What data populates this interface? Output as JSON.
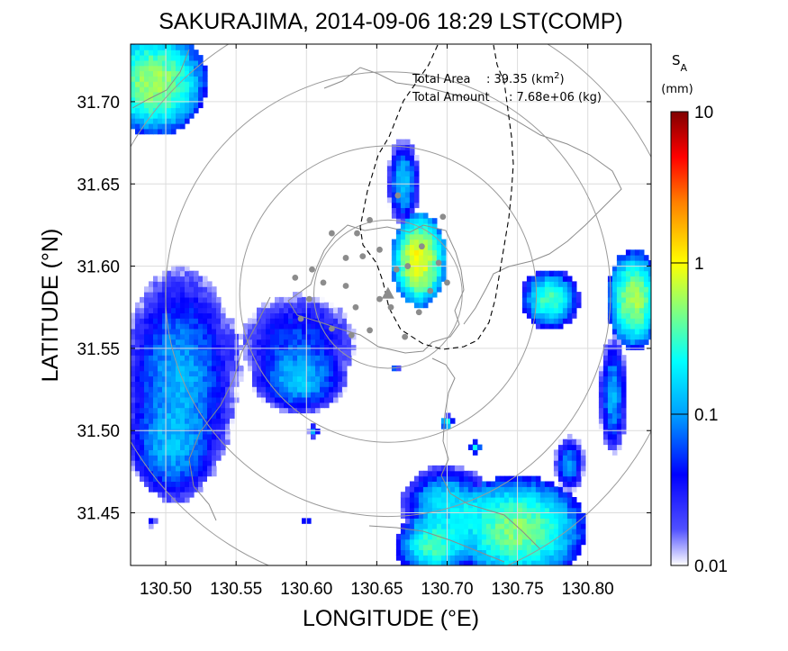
{
  "chart_data": {
    "type": "heatmap",
    "title": "SAKURAJIMA, 2014-09-06 18:29 LST(COMP)",
    "xlabel": "LONGITUDE (°E)",
    "ylabel": "LATITUDE (°N)",
    "xlim": [
      130.475,
      130.845
    ],
    "ylim": [
      31.418,
      31.735
    ],
    "x_ticks": [
      130.5,
      130.55,
      130.6,
      130.65,
      130.7,
      130.75,
      130.8
    ],
    "x_tick_labels": [
      "130.50",
      "130.55",
      "130.60",
      "130.65",
      "130.70",
      "130.75",
      "130.80"
    ],
    "y_ticks": [
      31.45,
      31.5,
      31.55,
      31.6,
      31.65,
      31.7
    ],
    "y_tick_labels": [
      "31.45",
      "31.50",
      "31.55",
      "31.60",
      "31.65",
      "31.70"
    ],
    "grid": true,
    "annotation": {
      "area_label": "Total Area",
      "area_value": ": 39.35 (km",
      "area_sup": "2",
      "area_tail": ")",
      "amount_label": "Total Amount",
      "amount_value": ": 7.68e+06 (kg)"
    },
    "colorbar": {
      "title_main": "S",
      "title_sub": "A",
      "unit": "(mm)",
      "scale": "log",
      "range": [
        0.01,
        10
      ],
      "tick_values": [
        0.01,
        0.1,
        1,
        10
      ],
      "tick_labels": [
        "0.01",
        "0.1",
        "1",
        "10"
      ],
      "colors": [
        "#ffffff",
        "#0000ff",
        "#00ffff",
        "#ffff00",
        "#ff0000",
        "#800000"
      ]
    },
    "vent": {
      "lon": 130.658,
      "lat": 31.583
    },
    "range_rings_km": [
      5,
      10,
      15,
      20
    ],
    "stations": [
      [
        130.618,
        31.62
      ],
      [
        130.628,
        31.605
      ],
      [
        130.628,
        31.588
      ],
      [
        130.636,
        31.62
      ],
      [
        130.645,
        31.628
      ],
      [
        130.652,
        31.61
      ],
      [
        130.664,
        31.598
      ],
      [
        130.672,
        31.6
      ],
      [
        130.66,
        31.575
      ],
      [
        130.68,
        31.572
      ],
      [
        130.688,
        31.585
      ],
      [
        130.694,
        31.602
      ],
      [
        130.7,
        31.59
      ],
      [
        130.645,
        31.561
      ],
      [
        130.632,
        31.558
      ],
      [
        130.618,
        31.562
      ],
      [
        130.602,
        31.58
      ],
      [
        130.604,
        31.598
      ],
      [
        130.596,
        31.568
      ],
      [
        130.64,
        31.606
      ],
      [
        130.67,
        31.557
      ],
      [
        130.682,
        31.612
      ],
      [
        130.697,
        31.63
      ],
      [
        130.652,
        31.58
      ],
      [
        130.612,
        31.59
      ],
      [
        130.592,
        31.593
      ],
      [
        130.635,
        31.575
      ],
      [
        130.665,
        31.643
      ]
    ],
    "cells": [
      {
        "lon": 130.492,
        "lat": 31.712,
        "rx": 0.034,
        "ry": 0.03,
        "peak": 0.6
      },
      {
        "lon": 130.594,
        "lat": 31.553,
        "rx": 0.048,
        "ry": 0.035,
        "peak": 0.06
      },
      {
        "lon": 130.595,
        "lat": 31.53,
        "rx": 0.03,
        "ry": 0.02,
        "peak": 0.12
      },
      {
        "lon": 130.51,
        "lat": 31.53,
        "rx": 0.04,
        "ry": 0.068,
        "peak": 0.12
      },
      {
        "lon": 130.502,
        "lat": 31.488,
        "rx": 0.03,
        "ry": 0.03,
        "peak": 0.08
      },
      {
        "lon": 130.68,
        "lat": 31.604,
        "rx": 0.018,
        "ry": 0.026,
        "peak": 1.0
      },
      {
        "lon": 130.669,
        "lat": 31.651,
        "rx": 0.011,
        "ry": 0.025,
        "peak": 0.15
      },
      {
        "lon": 130.773,
        "lat": 31.58,
        "rx": 0.019,
        "ry": 0.017,
        "peak": 0.35
      },
      {
        "lon": 130.833,
        "lat": 31.58,
        "rx": 0.018,
        "ry": 0.028,
        "peak": 0.6
      },
      {
        "lon": 130.818,
        "lat": 31.522,
        "rx": 0.01,
        "ry": 0.035,
        "peak": 0.12
      },
      {
        "lon": 130.787,
        "lat": 31.48,
        "rx": 0.011,
        "ry": 0.017,
        "peak": 0.1
      },
      {
        "lon": 130.75,
        "lat": 31.44,
        "rx": 0.045,
        "ry": 0.03,
        "peak": 0.5
      },
      {
        "lon": 130.7,
        "lat": 31.455,
        "rx": 0.03,
        "ry": 0.022,
        "peak": 0.2
      },
      {
        "lon": 130.69,
        "lat": 31.43,
        "rx": 0.025,
        "ry": 0.018,
        "peak": 0.35
      },
      {
        "lon": 130.7,
        "lat": 31.505,
        "rx": 0.004,
        "ry": 0.004,
        "peak": 0.3
      },
      {
        "lon": 130.72,
        "lat": 31.49,
        "rx": 0.004,
        "ry": 0.004,
        "peak": 0.2
      },
      {
        "lon": 130.605,
        "lat": 31.5,
        "rx": 0.004,
        "ry": 0.004,
        "peak": 0.1
      },
      {
        "lon": 130.6,
        "lat": 31.445,
        "rx": 0.004,
        "ry": 0.004,
        "peak": 0.05
      },
      {
        "lon": 130.663,
        "lat": 31.538,
        "rx": 0.003,
        "ry": 0.003,
        "peak": 0.1
      },
      {
        "lon": 130.49,
        "lat": 31.445,
        "rx": 0.004,
        "ry": 0.004,
        "peak": 0.05
      }
    ]
  }
}
